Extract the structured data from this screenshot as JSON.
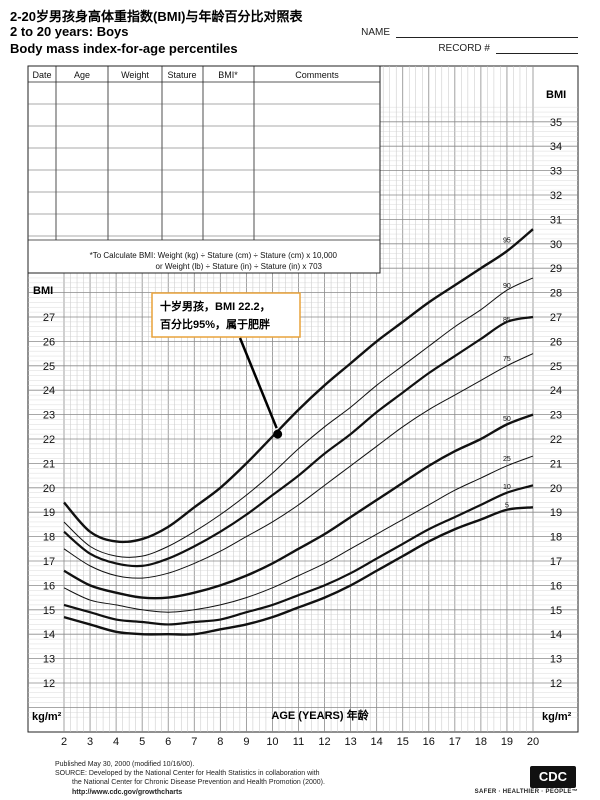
{
  "header": {
    "title_cn": "2-20岁男孩身高体重指数(BMI)与年龄百分比对照表",
    "title_en_1": "2 to 20 years: Boys",
    "title_en_2": "Body mass index-for-age percentiles",
    "name_label": "NAME",
    "record_label": "RECORD #"
  },
  "record_table": {
    "columns": [
      "Date",
      "Age",
      "Weight",
      "Stature",
      "BMI*",
      "Comments"
    ]
  },
  "formula": {
    "line1": "*To Calculate BMI: Weight (kg) ÷ Stature (cm) ÷ Stature (cm) x 10,000",
    "line2": "or Weight (lb) ÷ Stature (in) ÷ Stature (in) x 703"
  },
  "annotation": {
    "line1": "十岁男孩，BMI 22.2，",
    "line2": "百分比95%，属于肥胖",
    "point": {
      "age": 10.2,
      "bmi": 22.2
    }
  },
  "chart_data": {
    "type": "line",
    "title": "Body mass index-for-age percentiles",
    "xlabel": "AGE (YEARS) 年龄",
    "ylabel": "BMI",
    "y_unit_label": "kg/m²",
    "xlim": [
      2,
      20
    ],
    "ylim_right": [
      12,
      35
    ],
    "ylim_left": [
      12,
      27
    ],
    "x_ticks": [
      2,
      3,
      4,
      5,
      6,
      7,
      8,
      9,
      10,
      11,
      12,
      13,
      14,
      15,
      16,
      17,
      18,
      19,
      20
    ],
    "y_ticks_left": [
      12,
      13,
      14,
      15,
      16,
      17,
      18,
      19,
      20,
      21,
      22,
      23,
      24,
      25,
      26,
      27
    ],
    "y_ticks_right": [
      12,
      13,
      14,
      15,
      16,
      17,
      18,
      19,
      20,
      21,
      22,
      23,
      24,
      25,
      26,
      27,
      28,
      29,
      30,
      31,
      32,
      33,
      34,
      35
    ],
    "x": [
      2,
      3,
      4,
      5,
      6,
      7,
      8,
      9,
      10,
      11,
      12,
      13,
      14,
      15,
      16,
      17,
      18,
      19,
      20
    ],
    "series": [
      {
        "name": "95",
        "values": [
          19.4,
          18.2,
          17.8,
          17.9,
          18.4,
          19.2,
          20.0,
          21.0,
          22.1,
          23.2,
          24.2,
          25.1,
          26.0,
          26.8,
          27.6,
          28.3,
          29.0,
          29.7,
          30.6
        ]
      },
      {
        "name": "90",
        "values": [
          18.6,
          17.6,
          17.2,
          17.2,
          17.6,
          18.2,
          18.9,
          19.7,
          20.6,
          21.6,
          22.5,
          23.3,
          24.2,
          25.0,
          25.8,
          26.6,
          27.3,
          28.1,
          28.6
        ]
      },
      {
        "name": "85",
        "values": [
          18.2,
          17.3,
          16.9,
          16.8,
          17.1,
          17.6,
          18.2,
          18.9,
          19.7,
          20.5,
          21.4,
          22.2,
          23.1,
          23.9,
          24.7,
          25.4,
          26.1,
          26.8,
          27.0
        ]
      },
      {
        "name": "75",
        "values": [
          17.5,
          16.8,
          16.4,
          16.3,
          16.5,
          16.9,
          17.4,
          18.0,
          18.6,
          19.3,
          20.1,
          20.9,
          21.7,
          22.5,
          23.2,
          23.8,
          24.4,
          25.0,
          25.5
        ]
      },
      {
        "name": "50",
        "values": [
          16.6,
          16.0,
          15.7,
          15.5,
          15.5,
          15.7,
          16.0,
          16.4,
          16.9,
          17.5,
          18.1,
          18.8,
          19.5,
          20.2,
          20.9,
          21.5,
          22.0,
          22.6,
          23.0
        ]
      },
      {
        "name": "25",
        "values": [
          15.9,
          15.4,
          15.2,
          15.0,
          14.9,
          15.0,
          15.2,
          15.5,
          15.9,
          16.4,
          16.9,
          17.5,
          18.1,
          18.7,
          19.3,
          19.9,
          20.4,
          20.9,
          21.3
        ]
      },
      {
        "name": "10",
        "values": [
          15.2,
          14.9,
          14.6,
          14.5,
          14.4,
          14.5,
          14.6,
          14.9,
          15.2,
          15.6,
          16.0,
          16.5,
          17.1,
          17.7,
          18.3,
          18.8,
          19.3,
          19.8,
          20.1
        ]
      },
      {
        "name": "5",
        "values": [
          14.7,
          14.4,
          14.1,
          14.0,
          14.0,
          14.0,
          14.2,
          14.4,
          14.7,
          15.1,
          15.5,
          16.0,
          16.6,
          17.2,
          17.8,
          18.3,
          18.7,
          19.1,
          19.2
        ]
      }
    ],
    "grid": true
  },
  "footer": {
    "line1": "Published May 30, 2000 (modified 10/16/00).",
    "line2": "SOURCE: Developed by the National Center for Health Statistics in collaboration with",
    "line3": "the National Center for Chronic Disease Prevention and Health Promotion (2000).",
    "line4": "http://www.cdc.gov/growthcharts",
    "logo_text": "CDC",
    "tagline": "SAFER · HEALTHIER · PEOPLE™"
  }
}
